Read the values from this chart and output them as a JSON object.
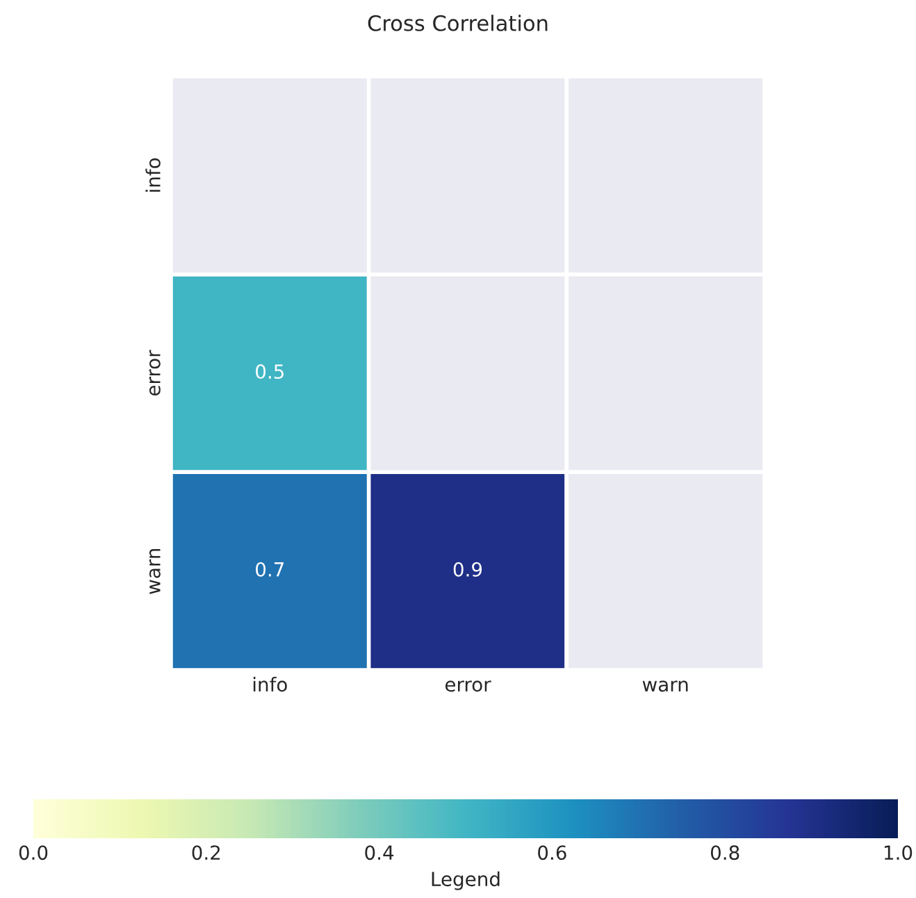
{
  "chart_data": {
    "type": "heatmap",
    "title": "Cross Correlation",
    "clabel": "Legend",
    "categories": [
      "info",
      "error",
      "warn"
    ],
    "y_categories": [
      "info",
      "error",
      "warn"
    ],
    "cells": [
      [
        null,
        null,
        null
      ],
      [
        0.5,
        null,
        null
      ],
      [
        0.7,
        0.9,
        null
      ]
    ],
    "data_labels": true,
    "clim": [
      0.0,
      1.0
    ],
    "cticks": [
      {
        "value": 0.0,
        "label": "0.0"
      },
      0.2,
      0.4,
      0.6,
      0.8,
      {
        "value": 1.0,
        "label": "1.0"
      }
    ]
  }
}
